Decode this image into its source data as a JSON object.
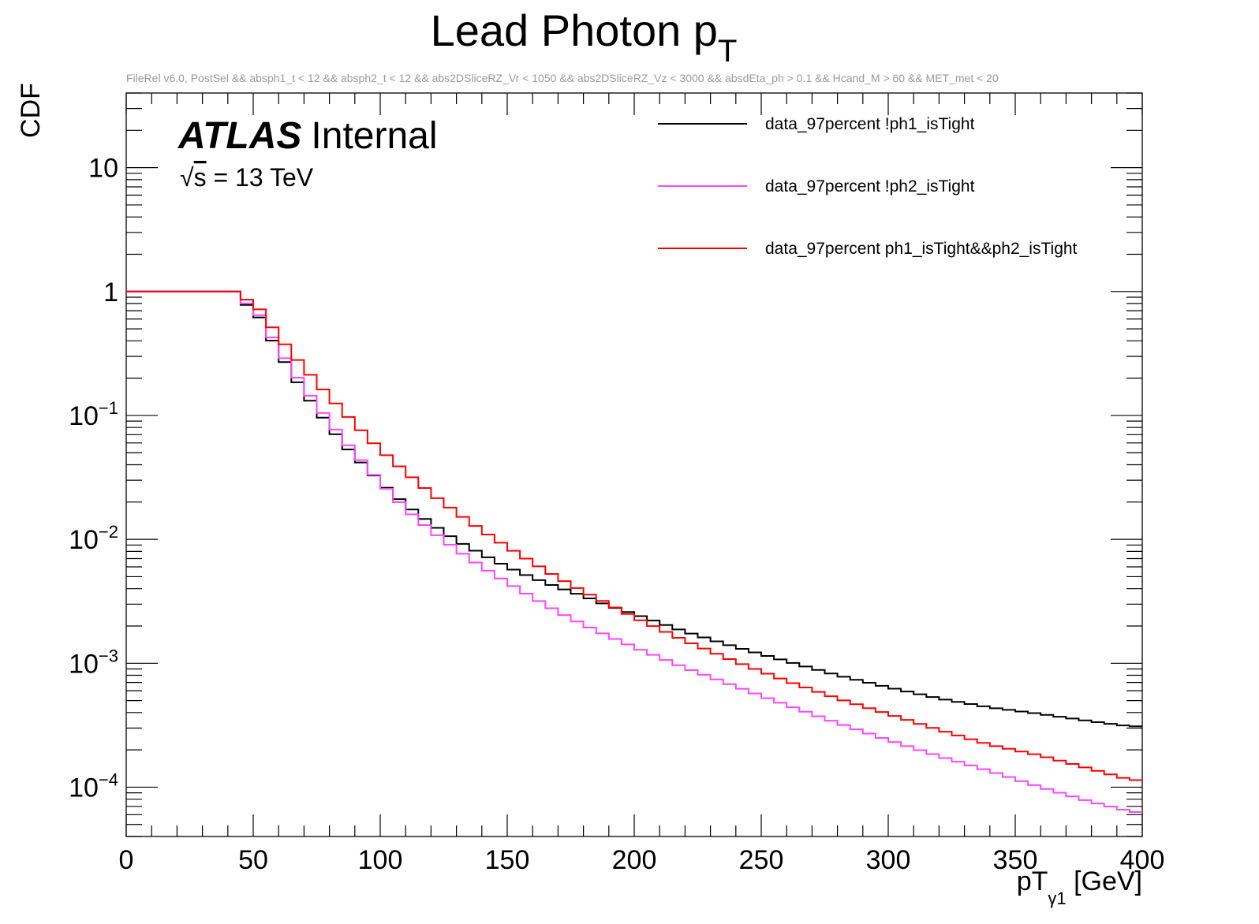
{
  "chart_data": {
    "type": "line",
    "drawstyle": "steps",
    "title": "Lead Photon p",
    "title_sub": "T",
    "subtitle": "FileRel v6.0, PostSel &&  absph1_t < 12 && absph2_t < 12 && abs2DSliceRZ_Vr < 1050 && abs2DSliceRZ_Vz < 3000 && absdEta_ph > 0.1 && Hcand_M > 60 && MET_met < 20",
    "ylabel": "CDF",
    "xlabel_main": "pT",
    "xlabel_sub": "γ1",
    "xlabel_unit": " [GeV]",
    "atlas_label": "ATLAS",
    "atlas_status": "Internal",
    "energy_sqrt": "√",
    "energy_s": "s",
    "energy_rest": " = 13 TeV",
    "xlim": [
      0,
      400
    ],
    "ylim": [
      4e-05,
      40
    ],
    "yscale": "log",
    "bin_width": 5,
    "grid": false,
    "legend_position": "top-right",
    "x_ticks": [
      {
        "value": 0,
        "label": "0"
      },
      {
        "value": 50,
        "label": "50"
      },
      {
        "value": 100,
        "label": "100"
      },
      {
        "value": 150,
        "label": "150"
      },
      {
        "value": 200,
        "label": "200"
      },
      {
        "value": 250,
        "label": "250"
      },
      {
        "value": 300,
        "label": "300"
      },
      {
        "value": 350,
        "label": "350"
      },
      {
        "value": 400,
        "label": "400"
      }
    ],
    "y_ticks": [
      {
        "value": 10,
        "base": "10",
        "exp": ""
      },
      {
        "value": 1,
        "base": "1",
        "exp": ""
      },
      {
        "value": 0.1,
        "base": "10",
        "exp": "−1"
      },
      {
        "value": 0.01,
        "base": "10",
        "exp": "−2"
      },
      {
        "value": 0.001,
        "base": "10",
        "exp": "−3"
      },
      {
        "value": 0.0001,
        "base": "10",
        "exp": "−4"
      }
    ],
    "series": [
      {
        "name": "data_97percent !ph1_isTight",
        "color": "#000000",
        "points": [
          [
            0,
            1
          ],
          [
            45,
            1
          ],
          [
            45,
            0.78
          ],
          [
            50,
            0.78
          ],
          [
            55,
            0.49
          ],
          [
            60,
            0.33
          ],
          [
            65,
            0.22
          ],
          [
            70,
            0.156
          ],
          [
            75,
            0.111
          ],
          [
            80,
            0.083
          ],
          [
            85,
            0.06
          ],
          [
            90,
            0.047
          ],
          [
            95,
            0.037
          ],
          [
            100,
            0.029
          ],
          [
            110,
            0.019
          ],
          [
            120,
            0.0134
          ],
          [
            130,
            0.0098
          ],
          [
            140,
            0.0076
          ],
          [
            150,
            0.006
          ],
          [
            160,
            0.0049
          ],
          [
            170,
            0.0041
          ],
          [
            180,
            0.0035
          ],
          [
            190,
            0.0029
          ],
          [
            200,
            0.0025
          ],
          [
            220,
            0.0018
          ],
          [
            240,
            0.00135
          ],
          [
            260,
            0.00104
          ],
          [
            280,
            0.0008
          ],
          [
            300,
            0.00064
          ],
          [
            320,
            0.00052
          ],
          [
            340,
            0.00044
          ],
          [
            360,
            0.00039
          ],
          [
            380,
            0.00034
          ],
          [
            395,
            0.00031
          ],
          [
            400,
            0.00031
          ]
        ]
      },
      {
        "name": "data_97percent !ph2_isTight",
        "color": "#ff44ff",
        "points": [
          [
            0,
            1
          ],
          [
            45,
            1
          ],
          [
            45,
            0.8
          ],
          [
            50,
            0.8
          ],
          [
            55,
            0.52
          ],
          [
            60,
            0.35
          ],
          [
            65,
            0.24
          ],
          [
            70,
            0.17
          ],
          [
            75,
            0.122
          ],
          [
            80,
            0.09
          ],
          [
            85,
            0.066
          ],
          [
            90,
            0.05
          ],
          [
            95,
            0.038
          ],
          [
            100,
            0.029
          ],
          [
            110,
            0.0176
          ],
          [
            120,
            0.0118
          ],
          [
            130,
            0.0083
          ],
          [
            140,
            0.006
          ],
          [
            150,
            0.0045
          ],
          [
            160,
            0.0034
          ],
          [
            170,
            0.0026
          ],
          [
            180,
            0.00205
          ],
          [
            190,
            0.00165
          ],
          [
            200,
            0.00135
          ],
          [
            220,
            0.00092
          ],
          [
            240,
            0.00065
          ],
          [
            260,
            0.00046
          ],
          [
            280,
            0.00033
          ],
          [
            300,
            0.00024
          ],
          [
            320,
            0.000178
          ],
          [
            340,
            0.000135
          ],
          [
            360,
            0.0001
          ],
          [
            380,
            7.6e-05
          ],
          [
            395,
            6.4e-05
          ],
          [
            400,
            6.2e-05
          ]
        ]
      },
      {
        "name": "data_97percent ph1_isTight&&ph2_isTight",
        "color": "#ff0000",
        "points": [
          [
            0,
            1
          ],
          [
            45,
            1
          ],
          [
            45,
            0.86
          ],
          [
            50,
            0.86
          ],
          [
            55,
            0.6
          ],
          [
            60,
            0.44
          ],
          [
            65,
            0.32
          ],
          [
            70,
            0.245
          ],
          [
            75,
            0.185
          ],
          [
            80,
            0.142
          ],
          [
            85,
            0.11
          ],
          [
            90,
            0.086
          ],
          [
            95,
            0.067
          ],
          [
            100,
            0.053
          ],
          [
            110,
            0.035
          ],
          [
            120,
            0.0235
          ],
          [
            130,
            0.0165
          ],
          [
            140,
            0.0118
          ],
          [
            150,
            0.0087
          ],
          [
            160,
            0.0065
          ],
          [
            170,
            0.0049
          ],
          [
            180,
            0.0038
          ],
          [
            190,
            0.003
          ],
          [
            200,
            0.00235
          ],
          [
            220,
            0.00152
          ],
          [
            240,
            0.00103
          ],
          [
            260,
            0.00072
          ],
          [
            280,
            0.00052
          ],
          [
            300,
            0.00039
          ],
          [
            320,
            0.00029
          ],
          [
            340,
            0.00022
          ],
          [
            360,
            0.00018
          ],
          [
            380,
            0.00014
          ],
          [
            395,
            0.000115
          ],
          [
            400,
            0.000113
          ]
        ]
      }
    ]
  }
}
